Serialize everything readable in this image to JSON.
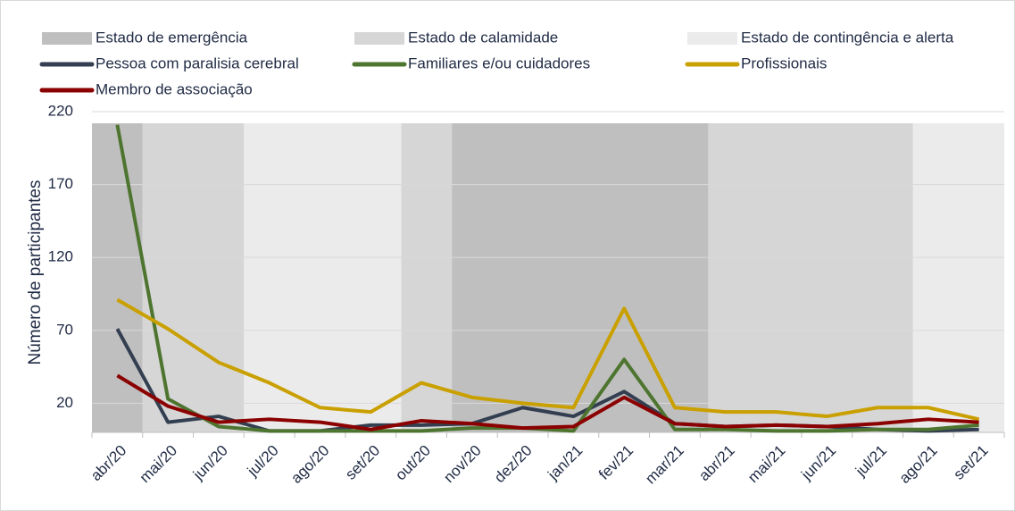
{
  "chart_data": {
    "type": "line",
    "y_label": "Número de participantes",
    "categories": [
      "abr/20",
      "mai/20",
      "jun/20",
      "jul/20",
      "ago/20",
      "set/20",
      "out/20",
      "nov/20",
      "dez/20",
      "jan/21",
      "fev/21",
      "mar/21",
      "abr/21",
      "mai/21",
      "jun/21",
      "jul/21",
      "ago/21",
      "set/21"
    ],
    "bands": [
      {
        "name": "Estado de emergência",
        "color": "#bfbfbf",
        "periods": [
          [
            -0.5,
            0.5
          ],
          [
            6.6,
            11.66
          ]
        ]
      },
      {
        "name": "Estado de calamidade",
        "color": "#d6d6d6",
        "periods": [
          [
            0.5,
            2.5
          ],
          [
            5.6,
            6.6
          ],
          [
            11.66,
            15.7
          ]
        ]
      },
      {
        "name": "Estado de contingência e alerta",
        "color": "#ebebeb",
        "periods": [
          [
            2.5,
            5.6
          ],
          [
            15.7,
            17.5
          ]
        ]
      }
    ],
    "series": [
      {
        "name": "Pessoa com paralisia cerebral",
        "color": "#333f50",
        "values": [
          71,
          7,
          11,
          1,
          1,
          5,
          5,
          6,
          17,
          11,
          28,
          6,
          4,
          5,
          4,
          2,
          1,
          2
        ]
      },
      {
        "name": "Familiares e/ou cuidadores",
        "color": "#4e7530",
        "values": [
          211,
          23,
          4,
          1,
          1,
          1,
          1,
          3,
          3,
          1,
          50,
          2,
          2,
          1,
          1,
          2,
          2,
          5
        ]
      },
      {
        "name": "Profissionais",
        "color": "#c9a000",
        "values": [
          91,
          71,
          48,
          34,
          17,
          14,
          34,
          24,
          20,
          17,
          85,
          17,
          14,
          14,
          11,
          17,
          17,
          9
        ]
      },
      {
        "name": "Membro de associação",
        "color": "#8b0000",
        "values": [
          39,
          18,
          7,
          9,
          7,
          2,
          8,
          6,
          3,
          4,
          24,
          6,
          4,
          5,
          4,
          6,
          9,
          7
        ]
      }
    ],
    "ylim": [
      0,
      220
    ],
    "yticks": [
      20,
      70,
      120,
      170,
      220
    ],
    "grid": true
  }
}
